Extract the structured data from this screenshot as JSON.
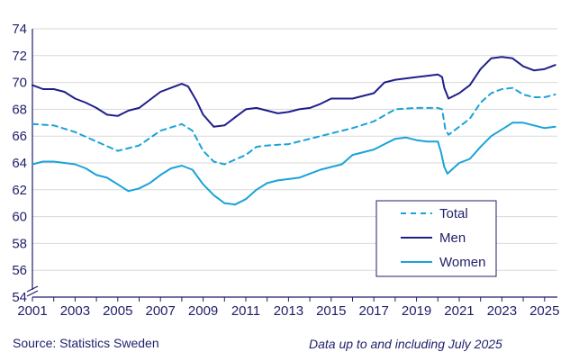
{
  "chart_data": {
    "type": "line",
    "title": "",
    "xlabel": "",
    "ylabel": "",
    "xlim": [
      2001,
      2025.6
    ],
    "ylim": [
      54,
      74
    ],
    "y_ticks": [
      54,
      56,
      58,
      60,
      62,
      64,
      66,
      68,
      70,
      72,
      74
    ],
    "x_ticks": [
      2001,
      2003,
      2005,
      2007,
      2009,
      2011,
      2013,
      2015,
      2017,
      2019,
      2021,
      2023,
      2025
    ],
    "grid": "horizontal",
    "legend_position": "bottom-right",
    "series": [
      {
        "name": "Total",
        "style": "dashed",
        "color": "#1aa3d9",
        "points": [
          [
            2001,
            66.9
          ],
          [
            2002,
            66.8
          ],
          [
            2003,
            66.3
          ],
          [
            2004,
            65.6
          ],
          [
            2005,
            64.9
          ],
          [
            2006,
            65.3
          ],
          [
            2007,
            66.4
          ],
          [
            2008,
            66.9
          ],
          [
            2008.5,
            66.4
          ],
          [
            2009,
            64.9
          ],
          [
            2009.5,
            64.1
          ],
          [
            2010,
            63.9
          ],
          [
            2011,
            64.6
          ],
          [
            2011.5,
            65.2
          ],
          [
            2012,
            65.3
          ],
          [
            2013,
            65.4
          ],
          [
            2014,
            65.8
          ],
          [
            2015,
            66.2
          ],
          [
            2016,
            66.6
          ],
          [
            2017,
            67.1
          ],
          [
            2018,
            68.0
          ],
          [
            2019,
            68.1
          ],
          [
            2020,
            68.1
          ],
          [
            2020.2,
            68.0
          ],
          [
            2020.35,
            66.5
          ],
          [
            2020.5,
            66.1
          ],
          [
            2021,
            66.7
          ],
          [
            2021.5,
            67.3
          ],
          [
            2022,
            68.5
          ],
          [
            2022.5,
            69.2
          ],
          [
            2023,
            69.5
          ],
          [
            2023.5,
            69.6
          ],
          [
            2024,
            69.1
          ],
          [
            2024.5,
            68.9
          ],
          [
            2025,
            68.9
          ],
          [
            2025.5,
            69.1
          ]
        ]
      },
      {
        "name": "Men",
        "style": "solid",
        "color": "#1f1f8c",
        "points": [
          [
            2001,
            69.8
          ],
          [
            2001.5,
            69.5
          ],
          [
            2002,
            69.5
          ],
          [
            2002.5,
            69.3
          ],
          [
            2003,
            68.8
          ],
          [
            2003.5,
            68.5
          ],
          [
            2004,
            68.1
          ],
          [
            2004.5,
            67.6
          ],
          [
            2005,
            67.5
          ],
          [
            2005.5,
            67.9
          ],
          [
            2006,
            68.1
          ],
          [
            2006.5,
            68.7
          ],
          [
            2007,
            69.3
          ],
          [
            2007.5,
            69.6
          ],
          [
            2008,
            69.9
          ],
          [
            2008.3,
            69.7
          ],
          [
            2008.7,
            68.6
          ],
          [
            2009,
            67.6
          ],
          [
            2009.5,
            66.7
          ],
          [
            2010,
            66.8
          ],
          [
            2010.5,
            67.4
          ],
          [
            2011,
            68.0
          ],
          [
            2011.5,
            68.1
          ],
          [
            2012,
            67.9
          ],
          [
            2012.5,
            67.7
          ],
          [
            2013,
            67.8
          ],
          [
            2013.5,
            68.0
          ],
          [
            2014,
            68.1
          ],
          [
            2014.5,
            68.4
          ],
          [
            2015,
            68.8
          ],
          [
            2016,
            68.8
          ],
          [
            2017,
            69.2
          ],
          [
            2017.5,
            70.0
          ],
          [
            2018,
            70.2
          ],
          [
            2018.5,
            70.3
          ],
          [
            2019,
            70.4
          ],
          [
            2019.5,
            70.5
          ],
          [
            2020,
            70.6
          ],
          [
            2020.2,
            70.4
          ],
          [
            2020.3,
            69.6
          ],
          [
            2020.5,
            68.8
          ],
          [
            2021,
            69.2
          ],
          [
            2021.5,
            69.8
          ],
          [
            2022,
            71.0
          ],
          [
            2022.5,
            71.8
          ],
          [
            2023,
            71.9
          ],
          [
            2023.5,
            71.8
          ],
          [
            2024,
            71.2
          ],
          [
            2024.5,
            70.9
          ],
          [
            2025,
            71.0
          ],
          [
            2025.5,
            71.3
          ]
        ]
      },
      {
        "name": "Women",
        "style": "solid",
        "color": "#1aa3d9",
        "points": [
          [
            2001,
            63.9
          ],
          [
            2001.5,
            64.1
          ],
          [
            2002,
            64.1
          ],
          [
            2003,
            63.9
          ],
          [
            2003.5,
            63.6
          ],
          [
            2004,
            63.1
          ],
          [
            2004.5,
            62.9
          ],
          [
            2005,
            62.4
          ],
          [
            2005.5,
            61.9
          ],
          [
            2006,
            62.1
          ],
          [
            2006.5,
            62.5
          ],
          [
            2007,
            63.1
          ],
          [
            2007.5,
            63.6
          ],
          [
            2008,
            63.8
          ],
          [
            2008.5,
            63.5
          ],
          [
            2009,
            62.4
          ],
          [
            2009.5,
            61.6
          ],
          [
            2010,
            61.0
          ],
          [
            2010.5,
            60.9
          ],
          [
            2011,
            61.3
          ],
          [
            2011.5,
            62.0
          ],
          [
            2012,
            62.5
          ],
          [
            2012.5,
            62.7
          ],
          [
            2013,
            62.8
          ],
          [
            2013.5,
            62.9
          ],
          [
            2014,
            63.2
          ],
          [
            2014.5,
            63.5
          ],
          [
            2015,
            63.7
          ],
          [
            2015.5,
            63.9
          ],
          [
            2016,
            64.6
          ],
          [
            2016.5,
            64.8
          ],
          [
            2017,
            65.0
          ],
          [
            2017.5,
            65.4
          ],
          [
            2018,
            65.8
          ],
          [
            2018.5,
            65.9
          ],
          [
            2019,
            65.7
          ],
          [
            2019.5,
            65.6
          ],
          [
            2020,
            65.6
          ],
          [
            2020.15,
            64.8
          ],
          [
            2020.3,
            63.7
          ],
          [
            2020.45,
            63.2
          ],
          [
            2021,
            64.0
          ],
          [
            2021.5,
            64.3
          ],
          [
            2022,
            65.2
          ],
          [
            2022.5,
            66.0
          ],
          [
            2023,
            66.5
          ],
          [
            2023.5,
            67.0
          ],
          [
            2024,
            67.0
          ],
          [
            2024.5,
            66.8
          ],
          [
            2025,
            66.6
          ],
          [
            2025.5,
            66.7
          ]
        ]
      }
    ]
  },
  "footer": {
    "source": "Source: Statistics Sweden",
    "note": "Data up to and including July 2025"
  },
  "colors": {
    "axis": "#1f1f6b",
    "grid": "#d9d9d9",
    "men": "#1f1f8c",
    "women": "#1aa3d9",
    "total": "#1aa3d9"
  }
}
